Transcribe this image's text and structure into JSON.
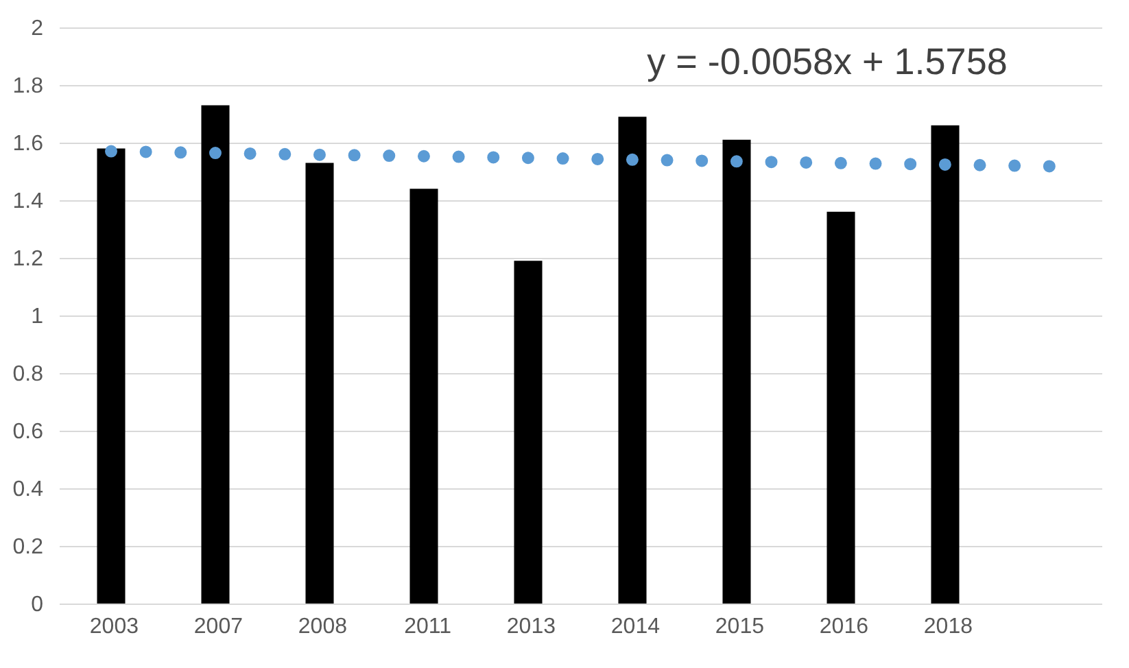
{
  "chart_data": {
    "type": "bar",
    "categories": [
      "2003",
      "2007",
      "2008",
      "2011",
      "2013",
      "2014",
      "2015",
      "2016",
      "2018",
      null
    ],
    "series": [
      {
        "color": "#000000",
        "values": [
          1.58,
          1.73,
          1.53,
          1.44,
          1.19,
          1.69,
          1.61,
          1.36,
          1.66,
          null
        ]
      },
      {
        "type": "line",
        "color": "#5b9bd5",
        "line_style": "dotted",
        "values": [
          1.57,
          1.564,
          1.558,
          1.553,
          1.547,
          1.541,
          1.535,
          1.529,
          1.524,
          1.518
        ]
      }
    ],
    "ylim": [
      0,
      2
    ],
    "yticks": [
      0,
      0.2,
      0.4,
      0.6,
      0.8,
      1,
      1.2,
      1.4,
      1.6,
      1.8,
      2
    ],
    "grid": "y",
    "annotations": [
      "y = -0.0058x + 1.5758"
    ]
  }
}
